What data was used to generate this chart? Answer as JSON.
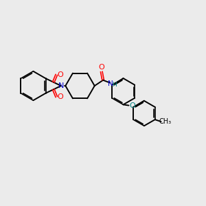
{
  "bg": "#ebebeb",
  "lc": "#000000",
  "nc": "#0000cc",
  "oc": "#ff0000",
  "oec": "#008080",
  "hc": "#008080",
  "lw": 1.4,
  "lw_dbl": 1.2,
  "fs": 7.5,
  "xlim": [
    0,
    10
  ],
  "ylim": [
    0,
    10
  ]
}
